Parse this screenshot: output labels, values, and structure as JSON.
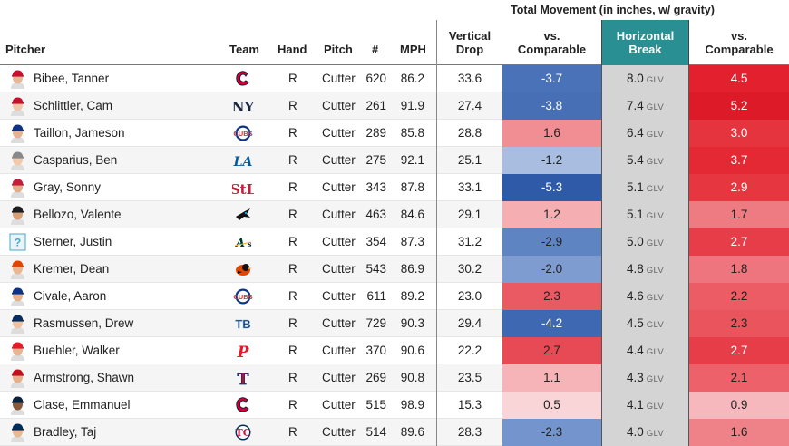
{
  "header": {
    "super_title": "Total Movement (in inches, w/ gravity)",
    "pitcher": "Pitcher",
    "team": "Team",
    "hand": "Hand",
    "pitch": "Pitch",
    "count": "#",
    "mph": "MPH",
    "vdrop_line1": "Vertical",
    "vdrop_line2": "Drop",
    "vs1_line1": "vs.",
    "vs1_line2": "Comparable",
    "hbreak_line1": "Horizontal",
    "hbreak_line2": "Break",
    "vs2_line1": "vs.",
    "vs2_line2": "Comparable"
  },
  "glv_label": "GLV",
  "rows": [
    {
      "name": "Bibee, Tanner",
      "team_icon": "guardians-logo",
      "hand": "R",
      "pitch": "Cutter",
      "count": "620",
      "mph": "86.2",
      "vdrop": "33.6",
      "vs1": "-3.7",
      "vs1_color": "#4a72b8",
      "vs1_text": "#ffffff",
      "hbreak": "8.0",
      "vs2": "4.5",
      "vs2_color": "#e3202d",
      "vs2_text": "#ffffff"
    },
    {
      "name": "Schlittler, Cam",
      "team_icon": "yankees-logo",
      "hand": "R",
      "pitch": "Cutter",
      "count": "261",
      "mph": "91.9",
      "vdrop": "27.4",
      "vs1": "-3.8",
      "vs1_color": "#466fb6",
      "vs1_text": "#ffffff",
      "hbreak": "7.4",
      "vs2": "5.2",
      "vs2_color": "#dc1a28",
      "vs2_text": "#ffffff"
    },
    {
      "name": "Taillon, Jameson",
      "team_icon": "cubs-logo",
      "hand": "R",
      "pitch": "Cutter",
      "count": "289",
      "mph": "85.8",
      "vdrop": "28.8",
      "vs1": "1.6",
      "vs1_color": "#f08e94",
      "vs1_text": "#222222",
      "hbreak": "6.4",
      "vs2": "3.0",
      "vs2_color": "#e6343f",
      "vs2_text": "#ffffff"
    },
    {
      "name": "Casparius, Ben",
      "team_icon": "dodgers-logo",
      "hand": "R",
      "pitch": "Cutter",
      "count": "275",
      "mph": "92.1",
      "vdrop": "25.1",
      "vs1": "-1.2",
      "vs1_color": "#a8bddf",
      "vs1_text": "#222222",
      "hbreak": "5.4",
      "vs2": "3.7",
      "vs2_color": "#e42834",
      "vs2_text": "#ffffff"
    },
    {
      "name": "Gray, Sonny",
      "team_icon": "cardinals-logo",
      "hand": "R",
      "pitch": "Cutter",
      "count": "343",
      "mph": "87.8",
      "vdrop": "33.1",
      "vs1": "-5.3",
      "vs1_color": "#2f5aa8",
      "vs1_text": "#ffffff",
      "hbreak": "5.1",
      "vs2": "2.9",
      "vs2_color": "#e6363f",
      "vs2_text": "#ffffff"
    },
    {
      "name": "Bellozo, Valente",
      "team_icon": "marlins-logo",
      "hand": "R",
      "pitch": "Cutter",
      "count": "463",
      "mph": "84.6",
      "vdrop": "29.1",
      "vs1": "1.2",
      "vs1_color": "#f5aeb2",
      "vs1_text": "#222222",
      "hbreak": "5.1",
      "vs2": "1.7",
      "vs2_color": "#ee7a82",
      "vs2_text": "#222222"
    },
    {
      "name": "Sterner, Justin",
      "team_icon": "athletics-logo",
      "hand": "R",
      "pitch": "Cutter",
      "count": "354",
      "mph": "87.3",
      "vdrop": "31.2",
      "vs1": "-2.9",
      "vs1_color": "#5f84c2",
      "vs1_text": "#222222",
      "hbreak": "5.0",
      "vs2": "2.7",
      "vs2_color": "#e73d48",
      "vs2_text": "#ffffff"
    },
    {
      "name": "Kremer, Dean",
      "team_icon": "orioles-logo",
      "hand": "R",
      "pitch": "Cutter",
      "count": "543",
      "mph": "86.9",
      "vdrop": "30.2",
      "vs1": "-2.0",
      "vs1_color": "#7e9cd0",
      "vs1_text": "#222222",
      "hbreak": "4.8",
      "vs2": "1.8",
      "vs2_color": "#ee757d",
      "vs2_text": "#222222"
    },
    {
      "name": "Civale, Aaron",
      "team_icon": "cubs-logo",
      "hand": "R",
      "pitch": "Cutter",
      "count": "611",
      "mph": "89.2",
      "vdrop": "23.0",
      "vs1": "2.3",
      "vs1_color": "#ea5a63",
      "vs1_text": "#222222",
      "hbreak": "4.6",
      "vs2": "2.2",
      "vs2_color": "#eb5c65",
      "vs2_text": "#222222"
    },
    {
      "name": "Rasmussen, Drew",
      "team_icon": "rays-logo",
      "hand": "R",
      "pitch": "Cutter",
      "count": "729",
      "mph": "90.3",
      "vdrop": "29.4",
      "vs1": "-4.2",
      "vs1_color": "#3f68b2",
      "vs1_text": "#ffffff",
      "hbreak": "4.5",
      "vs2": "2.3",
      "vs2_color": "#ea545d",
      "vs2_text": "#222222"
    },
    {
      "name": "Buehler, Walker",
      "team_icon": "phillies-logo",
      "hand": "R",
      "pitch": "Cutter",
      "count": "370",
      "mph": "90.6",
      "vdrop": "22.2",
      "vs1": "2.7",
      "vs1_color": "#e74a54",
      "vs1_text": "#222222",
      "hbreak": "4.4",
      "vs2": "2.7",
      "vs2_color": "#e73d48",
      "vs2_text": "#ffffff"
    },
    {
      "name": "Armstrong, Shawn",
      "team_icon": "rangers-logo",
      "hand": "R",
      "pitch": "Cutter",
      "count": "269",
      "mph": "90.8",
      "vdrop": "23.5",
      "vs1": "1.1",
      "vs1_color": "#f6b4b8",
      "vs1_text": "#222222",
      "hbreak": "4.3",
      "vs2": "2.1",
      "vs2_color": "#ec616a",
      "vs2_text": "#222222"
    },
    {
      "name": "Clase, Emmanuel",
      "team_icon": "guardians-logo",
      "hand": "R",
      "pitch": "Cutter",
      "count": "515",
      "mph": "98.9",
      "vdrop": "15.3",
      "vs1": "0.5",
      "vs1_color": "#fad5d7",
      "vs1_text": "#222222",
      "hbreak": "4.1",
      "vs2": "0.9",
      "vs2_color": "#f6b8bc",
      "vs2_text": "#222222"
    },
    {
      "name": "Bradley, Taj",
      "team_icon": "twins-logo",
      "hand": "R",
      "pitch": "Cutter",
      "count": "514",
      "mph": "89.6",
      "vdrop": "28.3",
      "vs1": "-2.3",
      "vs1_color": "#7394cc",
      "vs1_text": "#222222",
      "hbreak": "4.0",
      "vs2": "1.6",
      "vs2_color": "#ef8189",
      "vs2_text": "#222222"
    }
  ]
}
